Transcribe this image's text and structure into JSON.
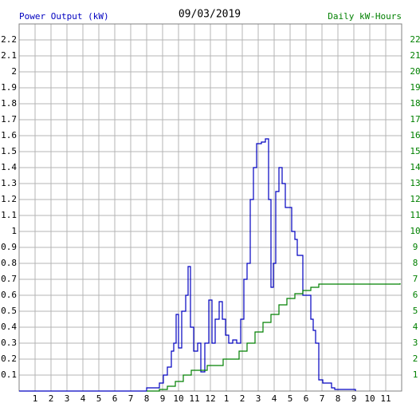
{
  "chart_data": {
    "type": "line",
    "title": "09/03/2019",
    "y_label": "Power Output (kW)",
    "y2_label": "Daily kW-Hours",
    "step": true,
    "grid": true,
    "xlim": [
      0,
      24
    ],
    "xticks": [
      1,
      2,
      3,
      4,
      5,
      6,
      7,
      8,
      9,
      10,
      11,
      12,
      {
        "value": 13,
        "label": "1"
      },
      {
        "value": 14,
        "label": "2"
      },
      {
        "value": 15,
        "label": "3"
      },
      {
        "value": 16,
        "label": "4"
      },
      {
        "value": 17,
        "label": "5"
      },
      {
        "value": 18,
        "label": "6"
      },
      {
        "value": 19,
        "label": "7"
      },
      {
        "value": 20,
        "label": "8"
      },
      {
        "value": 21,
        "label": "9"
      },
      {
        "value": 22,
        "label": "10"
      },
      {
        "value": 23,
        "label": "11"
      }
    ],
    "ylim": [
      0,
      2.3
    ],
    "yticks": [
      0.1,
      0.2,
      0.3,
      0.4,
      0.5,
      0.6,
      0.7,
      0.8,
      0.9,
      1.0,
      1.1,
      1.2,
      1.3,
      1.4,
      1.5,
      1.6,
      1.7,
      1.8,
      1.9,
      2.0,
      2.1,
      2.2
    ],
    "y2lim": [
      0,
      23
    ],
    "y2ticks": [
      1,
      2,
      3,
      4,
      5,
      6,
      7,
      8,
      9,
      10,
      11,
      12,
      13,
      14,
      15,
      16,
      17,
      18,
      19,
      20,
      21,
      22
    ],
    "series": [
      {
        "name": "Power Output (kW)",
        "color": "#0000c0",
        "x": [
          0,
          8,
          8.8,
          9.05,
          9.3,
          9.55,
          9.7,
          9.85,
          10,
          10.2,
          10.45,
          10.6,
          10.75,
          10.95,
          11.2,
          11.4,
          11.65,
          11.9,
          12.1,
          12.3,
          12.55,
          12.75,
          12.95,
          13.15,
          13.4,
          13.65,
          13.9,
          14.1,
          14.3,
          14.5,
          14.7,
          14.9,
          15.2,
          15.45,
          15.65,
          15.8,
          15.95,
          16.1,
          16.3,
          16.5,
          16.7,
          16.9,
          17.1,
          17.3,
          17.45,
          17.6,
          17.8,
          18.05,
          18.3,
          18.45,
          18.6,
          18.8,
          19.05,
          19.3,
          19.6,
          19.8,
          21.1
        ],
        "values": [
          0,
          0.02,
          0.05,
          0.1,
          0.15,
          0.25,
          0.3,
          0.48,
          0.27,
          0.5,
          0.6,
          0.78,
          0.4,
          0.25,
          0.3,
          0.12,
          0.3,
          0.57,
          0.3,
          0.45,
          0.56,
          0.45,
          0.35,
          0.3,
          0.32,
          0.3,
          0.45,
          0.7,
          0.8,
          1.2,
          1.4,
          1.55,
          1.56,
          1.58,
          1.2,
          0.65,
          0.8,
          1.25,
          1.4,
          1.3,
          1.15,
          1.15,
          1.0,
          0.95,
          0.85,
          0.85,
          0.6,
          0.6,
          0.45,
          0.38,
          0.3,
          0.07,
          0.05,
          0.05,
          0.02,
          0.01,
          0
        ]
      },
      {
        "name": "Daily kW-Hours",
        "color": "#008000",
        "axis": "y2",
        "x": [
          8,
          8.8,
          9.3,
          9.8,
          10.3,
          10.8,
          11.8,
          12.8,
          13.8,
          14.3,
          14.8,
          15.3,
          15.8,
          16.3,
          16.8,
          17.3,
          17.8,
          18.3,
          18.8,
          19.3,
          23.9
        ],
        "values": [
          0,
          0.1,
          0.3,
          0.6,
          1.0,
          1.3,
          1.6,
          2.0,
          2.5,
          3.0,
          3.7,
          4.3,
          4.8,
          5.4,
          5.8,
          6.1,
          6.3,
          6.5,
          6.7,
          6.7,
          6.75
        ]
      }
    ]
  }
}
